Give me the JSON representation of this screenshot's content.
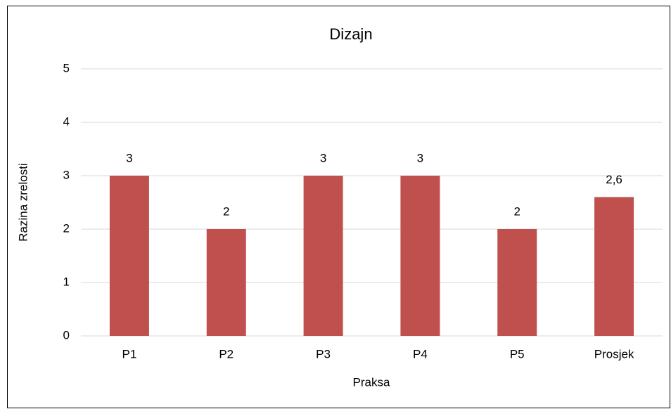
{
  "chart_data": {
    "type": "bar",
    "title": "Dizajn",
    "x_label": "Praksa",
    "y_label": "Razina zrelosti",
    "categories": [
      "P1",
      "P2",
      "P3",
      "P4",
      "P5",
      "Prosjek"
    ],
    "values": [
      3,
      2,
      3,
      3,
      2,
      2.6
    ],
    "value_labels": [
      "3",
      "2",
      "3",
      "3",
      "2",
      "2,6"
    ],
    "color": "#c0504d",
    "ylim": [
      0,
      5
    ],
    "yticks": [
      0,
      1,
      2,
      3,
      4,
      5
    ],
    "grid": true
  }
}
